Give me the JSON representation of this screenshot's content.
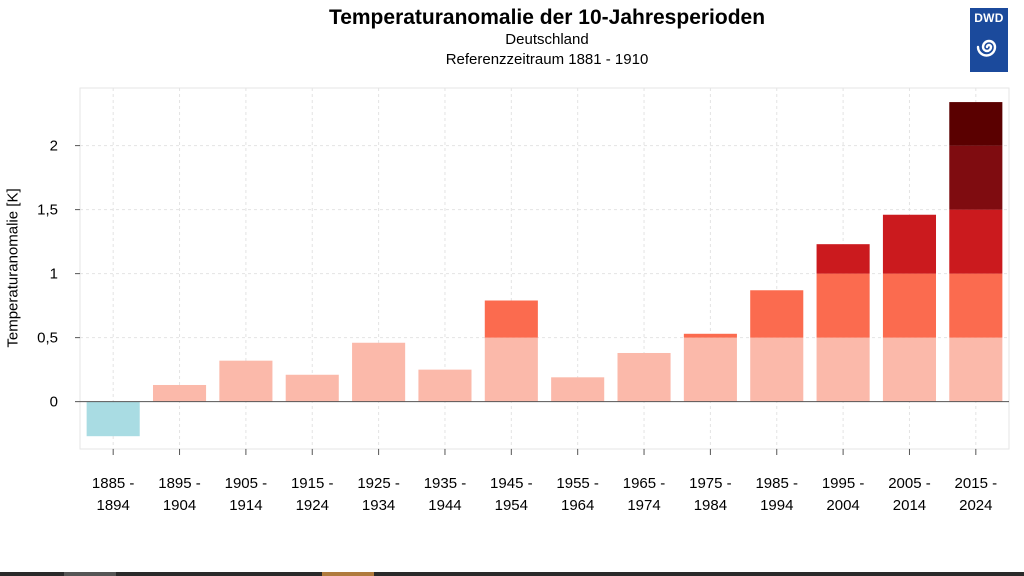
{
  "logo_text": "DWD",
  "colors": {
    "negative": "#a9dce3",
    "band_0_0.5": "#fbb9aa",
    "band_0.5_1": "#fb6b4f",
    "band_1_1.5": "#cb1a1e",
    "band_1.5_2": "#7f0c10",
    "band_2_2.5": "#5a0000"
  },
  "chart_data": {
    "type": "bar",
    "title": "Temperaturanomalie der 10-Jahresperioden",
    "subtitle_lines": [
      "Deutschland",
      "Referenzzeitraum 1881 - 1910"
    ],
    "xlabel": "",
    "ylabel": "Temperaturanomalie [K]",
    "ylim": [
      -0.37,
      2.45
    ],
    "yticks": [
      0,
      0.5,
      1,
      1.5,
      2
    ],
    "ytick_labels": [
      "0",
      "0,5",
      "1",
      "1,5",
      "2"
    ],
    "grid": true,
    "categories": [
      [
        "1885 -",
        "1894"
      ],
      [
        "1895 -",
        "1904"
      ],
      [
        "1905 -",
        "1914"
      ],
      [
        "1915 -",
        "1924"
      ],
      [
        "1925 -",
        "1934"
      ],
      [
        "1935 -",
        "1944"
      ],
      [
        "1945 -",
        "1954"
      ],
      [
        "1955 -",
        "1964"
      ],
      [
        "1965 -",
        "1974"
      ],
      [
        "1975 -",
        "1984"
      ],
      [
        "1985 -",
        "1994"
      ],
      [
        "1995 -",
        "2004"
      ],
      [
        "2005 -",
        "2014"
      ],
      [
        "2015 -",
        "2024"
      ]
    ],
    "values": [
      -0.27,
      0.13,
      0.32,
      0.21,
      0.46,
      0.25,
      0.79,
      0.19,
      0.38,
      0.53,
      0.87,
      1.23,
      1.46,
      2.34
    ],
    "color_bands": [
      0.5,
      1,
      1.5,
      2
    ]
  }
}
